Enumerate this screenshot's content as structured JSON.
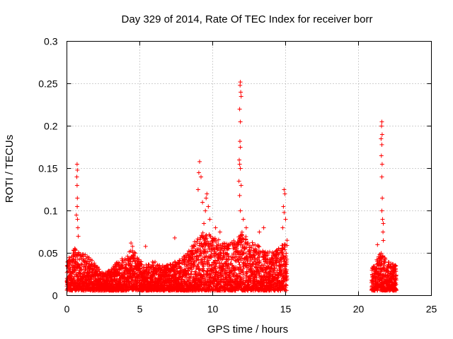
{
  "chart_data": {
    "type": "scatter",
    "title": "Day 329 of 2014, Rate Of TEC Index for receiver borr",
    "xlabel": "GPS time / hours",
    "ylabel": "ROTI / TECUs",
    "xlim": [
      0,
      25
    ],
    "ylim": [
      0,
      0.3
    ],
    "x_ticks": [
      0,
      5,
      10,
      15,
      20,
      25
    ],
    "y_ticks": [
      0,
      0.05,
      0.1,
      0.15,
      0.2,
      0.25,
      0.3
    ],
    "x_tick_labels": [
      "0",
      "5",
      "10",
      "15",
      "20",
      "25"
    ],
    "y_tick_labels": [
      "0",
      "0.05",
      "0.1",
      "0.15",
      "0.2",
      "0.25",
      "0.3"
    ],
    "grid": true,
    "marker": "+",
    "marker_color": "#ff0000",
    "segments": [
      {
        "start": 0.0,
        "end": 15.1
      },
      {
        "start": 20.9,
        "end": 22.6
      }
    ],
    "envelope": [
      [
        0.0,
        0.035
      ],
      [
        0.5,
        0.05
      ],
      [
        1.0,
        0.045
      ],
      [
        1.5,
        0.04
      ],
      [
        2.0,
        0.03
      ],
      [
        2.5,
        0.02
      ],
      [
        3.0,
        0.025
      ],
      [
        3.5,
        0.035
      ],
      [
        4.0,
        0.04
      ],
      [
        4.5,
        0.05
      ],
      [
        5.0,
        0.035
      ],
      [
        5.5,
        0.03
      ],
      [
        6.0,
        0.035
      ],
      [
        6.5,
        0.03
      ],
      [
        7.0,
        0.03
      ],
      [
        7.5,
        0.035
      ],
      [
        8.0,
        0.04
      ],
      [
        8.5,
        0.05
      ],
      [
        9.0,
        0.065
      ],
      [
        9.5,
        0.07
      ],
      [
        10.0,
        0.065
      ],
      [
        10.5,
        0.06
      ],
      [
        11.0,
        0.055
      ],
      [
        11.5,
        0.06
      ],
      [
        12.0,
        0.07
      ],
      [
        12.5,
        0.06
      ],
      [
        13.0,
        0.055
      ],
      [
        13.5,
        0.05
      ],
      [
        14.0,
        0.045
      ],
      [
        14.5,
        0.05
      ],
      [
        15.0,
        0.06
      ],
      [
        20.9,
        0.025
      ],
      [
        21.2,
        0.035
      ],
      [
        21.5,
        0.045
      ],
      [
        22.0,
        0.035
      ],
      [
        22.5,
        0.03
      ]
    ],
    "peaks": [
      [
        0.7,
        0.155
      ],
      [
        0.72,
        0.148
      ],
      [
        0.68,
        0.14
      ],
      [
        0.7,
        0.13
      ],
      [
        0.72,
        0.115
      ],
      [
        0.71,
        0.105
      ],
      [
        0.73,
        0.09
      ],
      [
        0.75,
        0.08
      ],
      [
        0.78,
        0.07
      ],
      [
        0.65,
        0.095
      ],
      [
        4.4,
        0.062
      ],
      [
        4.5,
        0.058
      ],
      [
        5.4,
        0.058
      ],
      [
        7.4,
        0.068
      ],
      [
        9.1,
        0.158
      ],
      [
        9.05,
        0.145
      ],
      [
        9.2,
        0.14
      ],
      [
        9.0,
        0.125
      ],
      [
        9.3,
        0.11
      ],
      [
        9.6,
        0.12
      ],
      [
        9.55,
        0.115
      ],
      [
        9.7,
        0.105
      ],
      [
        9.5,
        0.1
      ],
      [
        9.8,
        0.09
      ],
      [
        9.4,
        0.085
      ],
      [
        10.2,
        0.08
      ],
      [
        10.5,
        0.075
      ],
      [
        11.9,
        0.252
      ],
      [
        11.88,
        0.248
      ],
      [
        11.92,
        0.24
      ],
      [
        11.95,
        0.235
      ],
      [
        11.85,
        0.22
      ],
      [
        11.9,
        0.205
      ],
      [
        11.87,
        0.182
      ],
      [
        11.9,
        0.175
      ],
      [
        11.82,
        0.16
      ],
      [
        11.85,
        0.155
      ],
      [
        11.9,
        0.15
      ],
      [
        11.8,
        0.135
      ],
      [
        11.95,
        0.13
      ],
      [
        11.85,
        0.118
      ],
      [
        11.9,
        0.1
      ],
      [
        12.1,
        0.09
      ],
      [
        12.3,
        0.08
      ],
      [
        13.2,
        0.075
      ],
      [
        13.5,
        0.08
      ],
      [
        14.9,
        0.125
      ],
      [
        14.95,
        0.12
      ],
      [
        14.85,
        0.105
      ],
      [
        14.9,
        0.098
      ],
      [
        15.0,
        0.09
      ],
      [
        14.8,
        0.08
      ],
      [
        21.6,
        0.205
      ],
      [
        21.58,
        0.2
      ],
      [
        21.62,
        0.19
      ],
      [
        21.55,
        0.185
      ],
      [
        21.6,
        0.178
      ],
      [
        21.57,
        0.165
      ],
      [
        21.62,
        0.155
      ],
      [
        21.6,
        0.14
      ],
      [
        21.63,
        0.115
      ],
      [
        21.6,
        0.1
      ],
      [
        21.65,
        0.09
      ],
      [
        21.7,
        0.085
      ],
      [
        21.68,
        0.075
      ],
      [
        21.7,
        0.065
      ],
      [
        21.3,
        0.06
      ]
    ]
  }
}
